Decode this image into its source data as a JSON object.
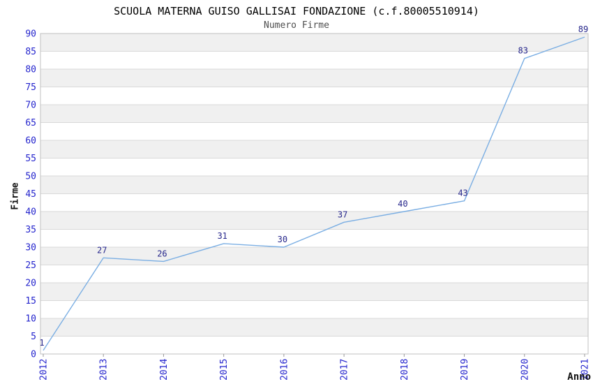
{
  "chart_data": {
    "type": "line",
    "title": "SCUOLA MATERNA GUISO GALLISAI FONDAZIONE (c.f.80005510914)",
    "subtitle": "Numero Firme",
    "xlabel": "Anno",
    "ylabel": "Firme",
    "categories": [
      "2012",
      "2013",
      "2014",
      "2015",
      "2016",
      "2017",
      "2018",
      "2019",
      "2020",
      "2021"
    ],
    "series": [
      {
        "name": "Numero Firme",
        "values": [
          1,
          27,
          26,
          31,
          30,
          37,
          40,
          43,
          83,
          89
        ]
      }
    ],
    "ylim": [
      0,
      90
    ],
    "ytick_step": 5,
    "legend": "none",
    "grid": "horizontal-bands",
    "data_labels_visible": true,
    "colors": {
      "line": "#7aaee3",
      "tick_labels": "#2424cd",
      "data_labels": "#26268b",
      "band": "#f0f0f0",
      "gridline": "#d9d9d9",
      "border": "#c0c0c0",
      "axis_tick": "#999999",
      "title": "#000000",
      "subtitle": "#4d4d4d"
    }
  }
}
